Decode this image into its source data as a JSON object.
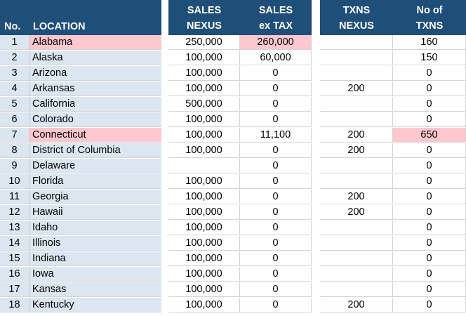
{
  "headers": {
    "no": "No.",
    "location": "LOCATION",
    "sales_nexus_1": "SALES",
    "sales_nexus_2": "NEXUS",
    "sales_ex_tax_1": "SALES",
    "sales_ex_tax_2": "ex TAX",
    "txns_nexus_1": "TXNS",
    "txns_nexus_2": "NEXUS",
    "no_of_txns_1": "No of",
    "no_of_txns_2": "TXNS"
  },
  "highlight_color": "#ffc7ce",
  "header_color": "#1f4e79",
  "rows": [
    {
      "no": "1",
      "location": "Alabama",
      "sales_nexus": "250,000",
      "sales_ex_tax": "260,000",
      "txns_nexus": "",
      "no_of_txns": "160"
    },
    {
      "no": "2",
      "location": "Alaska",
      "sales_nexus": "100,000",
      "sales_ex_tax": "60,000",
      "txns_nexus": "",
      "no_of_txns": "150"
    },
    {
      "no": "3",
      "location": "Arizona",
      "sales_nexus": "100,000",
      "sales_ex_tax": "0",
      "txns_nexus": "",
      "no_of_txns": "0"
    },
    {
      "no": "4",
      "location": "Arkansas",
      "sales_nexus": "100,000",
      "sales_ex_tax": "0",
      "txns_nexus": "200",
      "no_of_txns": "0"
    },
    {
      "no": "5",
      "location": "California",
      "sales_nexus": "500,000",
      "sales_ex_tax": "0",
      "txns_nexus": "",
      "no_of_txns": "0"
    },
    {
      "no": "6",
      "location": "Colorado",
      "sales_nexus": "100,000",
      "sales_ex_tax": "0",
      "txns_nexus": "",
      "no_of_txns": "0"
    },
    {
      "no": "7",
      "location": "Connecticut",
      "sales_nexus": "100,000",
      "sales_ex_tax": "11,100",
      "txns_nexus": "200",
      "no_of_txns": "650"
    },
    {
      "no": "8",
      "location": "District of Columbia",
      "sales_nexus": "100,000",
      "sales_ex_tax": "0",
      "txns_nexus": "200",
      "no_of_txns": "0"
    },
    {
      "no": "9",
      "location": "Delaware",
      "sales_nexus": "",
      "sales_ex_tax": "0",
      "txns_nexus": "",
      "no_of_txns": "0"
    },
    {
      "no": "10",
      "location": "Florida",
      "sales_nexus": "100,000",
      "sales_ex_tax": "0",
      "txns_nexus": "",
      "no_of_txns": "0"
    },
    {
      "no": "11",
      "location": "Georgia",
      "sales_nexus": "100,000",
      "sales_ex_tax": "0",
      "txns_nexus": "200",
      "no_of_txns": "0"
    },
    {
      "no": "12",
      "location": "Hawaii",
      "sales_nexus": "100,000",
      "sales_ex_tax": "0",
      "txns_nexus": "200",
      "no_of_txns": "0"
    },
    {
      "no": "13",
      "location": "Idaho",
      "sales_nexus": "100,000",
      "sales_ex_tax": "0",
      "txns_nexus": "",
      "no_of_txns": "0"
    },
    {
      "no": "14",
      "location": "Illinois",
      "sales_nexus": "100,000",
      "sales_ex_tax": "0",
      "txns_nexus": "",
      "no_of_txns": "0"
    },
    {
      "no": "15",
      "location": "Indiana",
      "sales_nexus": "100,000",
      "sales_ex_tax": "0",
      "txns_nexus": "",
      "no_of_txns": "0"
    },
    {
      "no": "16",
      "location": "Iowa",
      "sales_nexus": "100,000",
      "sales_ex_tax": "0",
      "txns_nexus": "",
      "no_of_txns": "0"
    },
    {
      "no": "17",
      "location": "Kansas",
      "sales_nexus": "100,000",
      "sales_ex_tax": "0",
      "txns_nexus": "",
      "no_of_txns": "0"
    },
    {
      "no": "18",
      "location": "Kentucky",
      "sales_nexus": "100,000",
      "sales_ex_tax": "0",
      "txns_nexus": "200",
      "no_of_txns": "0"
    }
  ]
}
